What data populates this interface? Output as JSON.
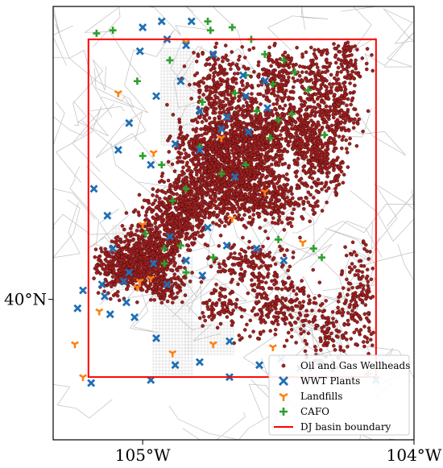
{
  "map": {
    "x_ticks": [
      {
        "lon": -105,
        "label": "105°W"
      },
      {
        "lon": -104,
        "label": "104°W"
      }
    ],
    "y_ticks": [
      {
        "lat": 40,
        "label": "40°N"
      }
    ],
    "extent": {
      "lon_min": -105.33,
      "lon_max": -104.0,
      "lat_min": 39.53,
      "lat_max": 40.98
    },
    "basin_boundary": {
      "lon_min": -105.2,
      "lon_max": -104.14,
      "lat_min": 39.74,
      "lat_max": 40.87
    },
    "colors": {
      "wellheads": "#a02020",
      "wwt": "#1f6fb4",
      "landfill": "#ff7f0e",
      "cafo": "#2ca02c",
      "boundary": "#ff0000",
      "roads": "#bfbfbf"
    }
  },
  "legend": {
    "items": [
      {
        "key": "wellheads",
        "label": "Oil and Gas Wellheads",
        "marker": "dot"
      },
      {
        "key": "wwt",
        "label": "WWT Plants",
        "marker": "x"
      },
      {
        "key": "landfill",
        "label": "Landfills",
        "marker": "tri"
      },
      {
        "key": "cafo",
        "label": "CAFO",
        "marker": "plus"
      },
      {
        "key": "boundary",
        "label": "DJ basin boundary",
        "marker": "line"
      }
    ]
  },
  "wwt_plants": [
    [
      -105.0,
      40.91
    ],
    [
      -104.91,
      40.87
    ],
    [
      -104.84,
      40.85
    ],
    [
      -104.74,
      40.82
    ],
    [
      -104.63,
      40.75
    ],
    [
      -104.55,
      40.73
    ],
    [
      -105.01,
      40.83
    ],
    [
      -104.95,
      40.68
    ],
    [
      -104.86,
      40.73
    ],
    [
      -104.79,
      40.63
    ],
    [
      -104.69,
      40.61
    ],
    [
      -104.62,
      40.68
    ],
    [
      -105.09,
      40.5
    ],
    [
      -105.05,
      40.59
    ],
    [
      -104.97,
      40.45
    ],
    [
      -104.88,
      40.52
    ],
    [
      -104.79,
      40.5
    ],
    [
      -104.71,
      40.57
    ],
    [
      -105.18,
      40.37
    ],
    [
      -105.13,
      40.28
    ],
    [
      -105.11,
      40.17
    ],
    [
      -105.05,
      40.09
    ],
    [
      -104.96,
      40.12
    ],
    [
      -104.91,
      40.05
    ],
    [
      -104.84,
      40.13
    ],
    [
      -104.78,
      40.08
    ],
    [
      -104.69,
      40.18
    ],
    [
      -104.58,
      40.17
    ],
    [
      -104.48,
      40.13
    ],
    [
      -105.22,
      40.03
    ],
    [
      -105.24,
      39.97
    ],
    [
      -105.14,
      40.01
    ],
    [
      -105.12,
      39.95
    ],
    [
      -105.06,
      39.99
    ],
    [
      -105.03,
      39.94
    ],
    [
      -104.95,
      39.87
    ],
    [
      -104.88,
      39.78
    ],
    [
      -104.79,
      39.79
    ],
    [
      -104.68,
      39.74
    ],
    [
      -104.57,
      39.78
    ],
    [
      -104.49,
      39.8
    ],
    [
      -104.42,
      39.77
    ],
    [
      -104.35,
      39.79
    ],
    [
      -104.14,
      39.73
    ],
    [
      -105.19,
      39.72
    ],
    [
      -104.97,
      39.73
    ],
    [
      -104.68,
      39.86
    ],
    [
      -105.07,
      40.06
    ],
    [
      -104.9,
      40.21
    ],
    [
      -104.76,
      40.24
    ],
    [
      -104.66,
      40.41
    ],
    [
      -104.61,
      40.56
    ],
    [
      -104.54,
      40.64
    ],
    [
      -104.82,
      40.93
    ],
    [
      -104.93,
      40.93
    ],
    [
      -105.15,
      40.05
    ]
  ],
  "landfills": [
    [
      -104.84,
      40.86
    ],
    [
      -105.09,
      40.69
    ],
    [
      -104.71,
      40.54
    ],
    [
      -104.96,
      40.49
    ],
    [
      -104.67,
      40.27
    ],
    [
      -104.55,
      40.36
    ],
    [
      -105.01,
      40.06
    ],
    [
      -104.97,
      40.07
    ],
    [
      -105.02,
      40.04
    ],
    [
      -105.16,
      39.96
    ],
    [
      -105.25,
      39.85
    ],
    [
      -104.89,
      39.82
    ],
    [
      -104.74,
      39.85
    ],
    [
      -104.52,
      39.84
    ],
    [
      -105.22,
      39.74
    ],
    [
      -104.41,
      40.19
    ],
    [
      -105.0,
      40.25
    ]
  ],
  "cafo": [
    [
      -105.17,
      40.89
    ],
    [
      -105.11,
      40.9
    ],
    [
      -104.76,
      40.93
    ],
    [
      -104.75,
      40.9
    ],
    [
      -104.67,
      40.91
    ],
    [
      -104.6,
      40.87
    ],
    [
      -104.55,
      40.82
    ],
    [
      -104.48,
      40.8
    ],
    [
      -104.44,
      40.76
    ],
    [
      -104.62,
      40.75
    ],
    [
      -104.52,
      40.72
    ],
    [
      -104.39,
      40.7
    ],
    [
      -104.58,
      40.63
    ],
    [
      -104.45,
      40.62
    ],
    [
      -104.53,
      40.54
    ],
    [
      -104.33,
      40.55
    ],
    [
      -104.79,
      40.51
    ],
    [
      -104.93,
      40.45
    ],
    [
      -105.0,
      40.48
    ],
    [
      -104.84,
      40.37
    ],
    [
      -104.89,
      40.33
    ],
    [
      -104.99,
      40.22
    ],
    [
      -104.92,
      40.17
    ],
    [
      -104.86,
      40.18
    ],
    [
      -104.74,
      40.14
    ],
    [
      -104.84,
      40.09
    ],
    [
      -104.92,
      40.12
    ],
    [
      -104.5,
      40.2
    ],
    [
      -104.37,
      40.17
    ],
    [
      -104.34,
      40.14
    ],
    [
      -104.17,
      39.75
    ],
    [
      -104.62,
      40.45
    ],
    [
      -104.71,
      40.42
    ],
    [
      -104.78,
      40.66
    ],
    [
      -104.66,
      40.69
    ],
    [
      -104.5,
      40.6
    ],
    [
      -104.9,
      40.8
    ],
    [
      -105.02,
      40.73
    ]
  ],
  "well_clusters": [
    [
      -104.74,
      40.5,
      0.12,
      0.09,
      520
    ],
    [
      -104.58,
      40.53,
      0.1,
      0.11,
      460
    ],
    [
      -104.42,
      40.56,
      0.09,
      0.08,
      300
    ],
    [
      -104.34,
      40.45,
      0.08,
      0.08,
      200
    ],
    [
      -104.55,
      40.33,
      0.14,
      0.07,
      360
    ],
    [
      -104.66,
      40.41,
      0.12,
      0.07,
      360
    ],
    [
      -104.8,
      40.34,
      0.12,
      0.08,
      420
    ],
    [
      -104.9,
      40.25,
      0.1,
      0.08,
      360
    ],
    [
      -104.98,
      40.14,
      0.09,
      0.07,
      440
    ],
    [
      -105.08,
      40.1,
      0.09,
      0.06,
      320
    ],
    [
      -104.92,
      40.05,
      0.06,
      0.04,
      160
    ],
    [
      -104.7,
      40.7,
      0.1,
      0.12,
      300
    ],
    [
      -104.5,
      40.74,
      0.07,
      0.09,
      180
    ],
    [
      -104.36,
      40.72,
      0.05,
      0.12,
      140
    ],
    [
      -104.28,
      40.62,
      0.06,
      0.09,
      160
    ],
    [
      -104.6,
      40.12,
      0.12,
      0.06,
      160
    ],
    [
      -104.5,
      39.98,
      0.12,
      0.1,
      200
    ],
    [
      -104.3,
      39.9,
      0.14,
      0.1,
      160
    ],
    [
      -104.2,
      40.04,
      0.06,
      0.12,
      120
    ],
    [
      -104.25,
      40.8,
      0.07,
      0.1,
      130
    ],
    [
      -104.72,
      39.98,
      0.06,
      0.06,
      80
    ]
  ]
}
